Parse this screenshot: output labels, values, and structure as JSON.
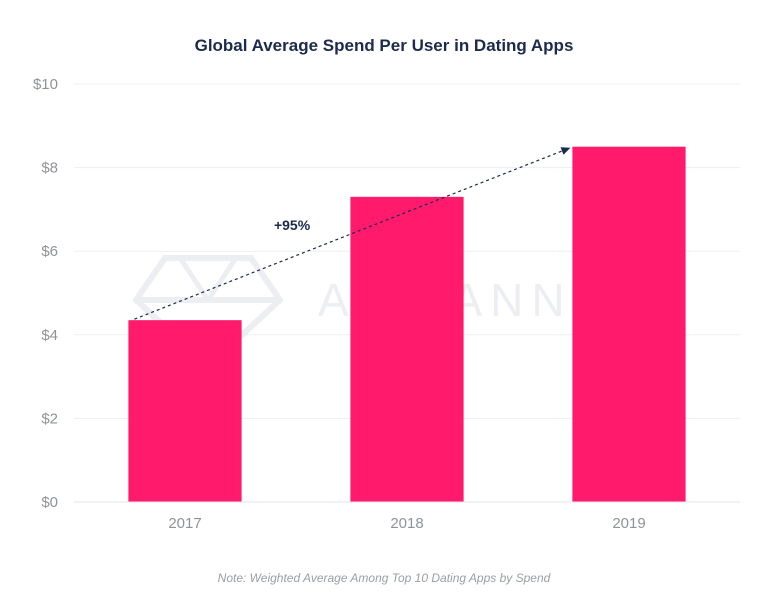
{
  "chart_data": {
    "type": "bar",
    "title": "Global Average Spend Per User in Dating Apps",
    "categories": [
      "2017",
      "2018",
      "2019"
    ],
    "values": [
      4.35,
      7.3,
      8.5
    ],
    "ylim": [
      0,
      10
    ],
    "yticks": [
      0,
      2,
      4,
      6,
      8,
      10
    ],
    "ytick_labels": [
      "$0",
      "$2",
      "$4",
      "$6",
      "$8",
      "$10"
    ],
    "xlabel": "",
    "ylabel": "",
    "grid": true,
    "bar_color": "#ff1a6c",
    "annotation": {
      "text": "+95%",
      "from": {
        "category": "2017",
        "value": 4.35
      },
      "to": {
        "category": "2019",
        "value": 8.5
      }
    },
    "note": "Note: Weighted Average Among Top 10 Dating Apps by Spend",
    "watermark": "APP ANNIE"
  }
}
